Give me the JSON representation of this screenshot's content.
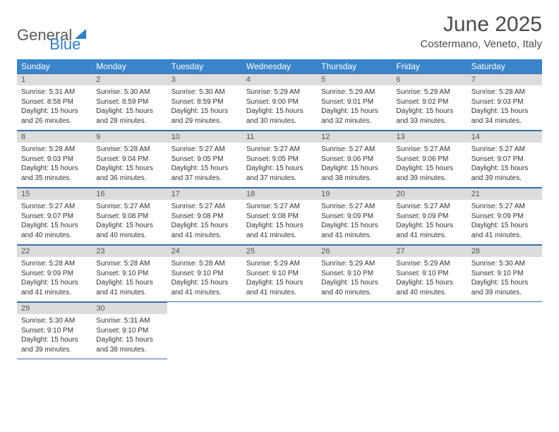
{
  "logo": {
    "part1": "General",
    "part2": "Blue"
  },
  "title": "June 2025",
  "location": "Costermano, Veneto, Italy",
  "colors": {
    "header_bg": "#3a85c9",
    "daynum_bg": "#dcdcdc",
    "cell_border": "#3a6ea5",
    "logo_blue": "#2f7fc2",
    "logo_gray": "#5a5a5a",
    "text_dark": "#4a4a4a"
  },
  "daysOfWeek": [
    "Sunday",
    "Monday",
    "Tuesday",
    "Wednesday",
    "Thursday",
    "Friday",
    "Saturday"
  ],
  "weeks": [
    [
      {
        "num": "1",
        "sunrise": "5:31 AM",
        "sunset": "8:58 PM",
        "daylight": "15 hours and 26 minutes."
      },
      {
        "num": "2",
        "sunrise": "5:30 AM",
        "sunset": "8:59 PM",
        "daylight": "15 hours and 28 minutes."
      },
      {
        "num": "3",
        "sunrise": "5:30 AM",
        "sunset": "8:59 PM",
        "daylight": "15 hours and 29 minutes."
      },
      {
        "num": "4",
        "sunrise": "5:29 AM",
        "sunset": "9:00 PM",
        "daylight": "15 hours and 30 minutes."
      },
      {
        "num": "5",
        "sunrise": "5:29 AM",
        "sunset": "9:01 PM",
        "daylight": "15 hours and 32 minutes."
      },
      {
        "num": "6",
        "sunrise": "5:29 AM",
        "sunset": "9:02 PM",
        "daylight": "15 hours and 33 minutes."
      },
      {
        "num": "7",
        "sunrise": "5:28 AM",
        "sunset": "9:03 PM",
        "daylight": "15 hours and 34 minutes."
      }
    ],
    [
      {
        "num": "8",
        "sunrise": "5:28 AM",
        "sunset": "9:03 PM",
        "daylight": "15 hours and 35 minutes."
      },
      {
        "num": "9",
        "sunrise": "5:28 AM",
        "sunset": "9:04 PM",
        "daylight": "15 hours and 36 minutes."
      },
      {
        "num": "10",
        "sunrise": "5:27 AM",
        "sunset": "9:05 PM",
        "daylight": "15 hours and 37 minutes."
      },
      {
        "num": "11",
        "sunrise": "5:27 AM",
        "sunset": "9:05 PM",
        "daylight": "15 hours and 37 minutes."
      },
      {
        "num": "12",
        "sunrise": "5:27 AM",
        "sunset": "9:06 PM",
        "daylight": "15 hours and 38 minutes."
      },
      {
        "num": "13",
        "sunrise": "5:27 AM",
        "sunset": "9:06 PM",
        "daylight": "15 hours and 39 minutes."
      },
      {
        "num": "14",
        "sunrise": "5:27 AM",
        "sunset": "9:07 PM",
        "daylight": "15 hours and 39 minutes."
      }
    ],
    [
      {
        "num": "15",
        "sunrise": "5:27 AM",
        "sunset": "9:07 PM",
        "daylight": "15 hours and 40 minutes."
      },
      {
        "num": "16",
        "sunrise": "5:27 AM",
        "sunset": "9:08 PM",
        "daylight": "15 hours and 40 minutes."
      },
      {
        "num": "17",
        "sunrise": "5:27 AM",
        "sunset": "9:08 PM",
        "daylight": "15 hours and 41 minutes."
      },
      {
        "num": "18",
        "sunrise": "5:27 AM",
        "sunset": "9:08 PM",
        "daylight": "15 hours and 41 minutes."
      },
      {
        "num": "19",
        "sunrise": "5:27 AM",
        "sunset": "9:09 PM",
        "daylight": "15 hours and 41 minutes."
      },
      {
        "num": "20",
        "sunrise": "5:27 AM",
        "sunset": "9:09 PM",
        "daylight": "15 hours and 41 minutes."
      },
      {
        "num": "21",
        "sunrise": "5:27 AM",
        "sunset": "9:09 PM",
        "daylight": "15 hours and 41 minutes."
      }
    ],
    [
      {
        "num": "22",
        "sunrise": "5:28 AM",
        "sunset": "9:09 PM",
        "daylight": "15 hours and 41 minutes."
      },
      {
        "num": "23",
        "sunrise": "5:28 AM",
        "sunset": "9:10 PM",
        "daylight": "15 hours and 41 minutes."
      },
      {
        "num": "24",
        "sunrise": "5:28 AM",
        "sunset": "9:10 PM",
        "daylight": "15 hours and 41 minutes."
      },
      {
        "num": "25",
        "sunrise": "5:29 AM",
        "sunset": "9:10 PM",
        "daylight": "15 hours and 41 minutes."
      },
      {
        "num": "26",
        "sunrise": "5:29 AM",
        "sunset": "9:10 PM",
        "daylight": "15 hours and 40 minutes."
      },
      {
        "num": "27",
        "sunrise": "5:29 AM",
        "sunset": "9:10 PM",
        "daylight": "15 hours and 40 minutes."
      },
      {
        "num": "28",
        "sunrise": "5:30 AM",
        "sunset": "9:10 PM",
        "daylight": "15 hours and 39 minutes."
      }
    ],
    [
      {
        "num": "29",
        "sunrise": "5:30 AM",
        "sunset": "9:10 PM",
        "daylight": "15 hours and 39 minutes."
      },
      {
        "num": "30",
        "sunrise": "5:31 AM",
        "sunset": "9:10 PM",
        "daylight": "15 hours and 38 minutes."
      },
      null,
      null,
      null,
      null,
      null
    ]
  ],
  "labels": {
    "sunrise": "Sunrise:",
    "sunset": "Sunset:",
    "daylight": "Daylight:"
  }
}
